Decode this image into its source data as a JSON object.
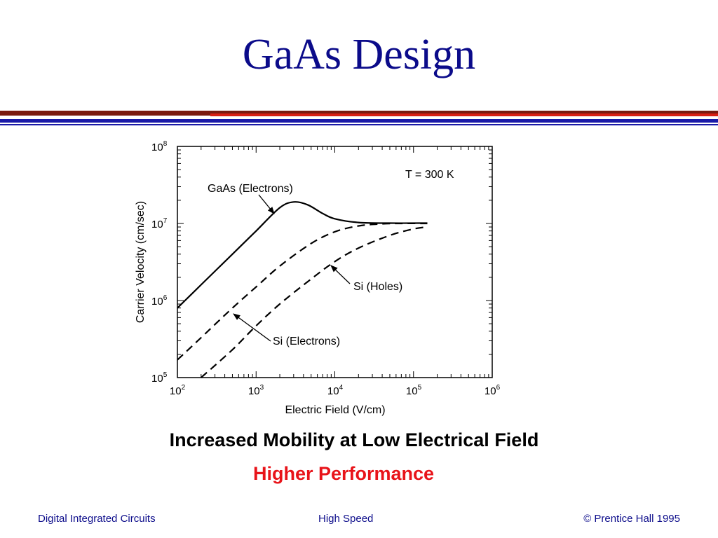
{
  "slide": {
    "title": "GaAs Design",
    "subtitle": "Increased Mobility at Low Electrical Field",
    "highlight": "Higher Performance",
    "highlight_color": "#e8141a",
    "title_color": "#0b0b8a"
  },
  "footer": {
    "left": "Digital Integrated Circuits",
    "center": "High Speed",
    "right": "© Prentice Hall 1995"
  },
  "chart_data": {
    "type": "line",
    "xscale": "log",
    "yscale": "log",
    "xlim": [
      100,
      1000000
    ],
    "ylim": [
      100000,
      100000000
    ],
    "xlabel": "Electric Field (V/cm)",
    "ylabel": "Carrier Velocity (cm/sec)",
    "x_ticks": [
      {
        "base": "10",
        "exp": "2"
      },
      {
        "base": "10",
        "exp": "3"
      },
      {
        "base": "10",
        "exp": "4"
      },
      {
        "base": "10",
        "exp": "5"
      },
      {
        "base": "10",
        "exp": "6"
      }
    ],
    "y_ticks": [
      {
        "base": "10",
        "exp": "5"
      },
      {
        "base": "10",
        "exp": "6"
      },
      {
        "base": "10",
        "exp": "7"
      },
      {
        "base": "10",
        "exp": "8"
      }
    ],
    "annotations": {
      "temperature": "T = 300 K",
      "gaas": "GaAs (Electrons)",
      "si_holes": "Si (Holes)",
      "si_electrons": "Si (Electrons)"
    },
    "series": [
      {
        "name": "GaAs (Electrons)",
        "style": "solid",
        "x": [
          100,
          200,
          500,
          1000,
          2000,
          3000,
          4500,
          7000,
          10000,
          20000,
          50000,
          150000
        ],
        "y": [
          800000,
          1600000,
          4000000,
          8000000,
          16000000,
          19000000,
          17500000,
          13500000,
          11500000,
          10300000,
          10100000,
          10100000
        ]
      },
      {
        "name": "Si (Electrons)",
        "style": "dashed",
        "x": [
          100,
          200,
          500,
          1000,
          2000,
          5000,
          10000,
          20000,
          40000,
          70000,
          150000
        ],
        "y": [
          170000,
          330000,
          800000,
          1500000,
          2800000,
          5500000,
          7800000,
          9300000,
          9900000,
          10000000,
          10000000
        ]
      },
      {
        "name": "Si (Holes)",
        "style": "dashed",
        "x": [
          200,
          500,
          1000,
          2000,
          5000,
          10000,
          20000,
          50000,
          100000,
          150000
        ],
        "y": [
          100000,
          230000,
          470000,
          900000,
          1900000,
          3200000,
          4800000,
          7000000,
          8500000,
          9000000
        ]
      }
    ]
  }
}
